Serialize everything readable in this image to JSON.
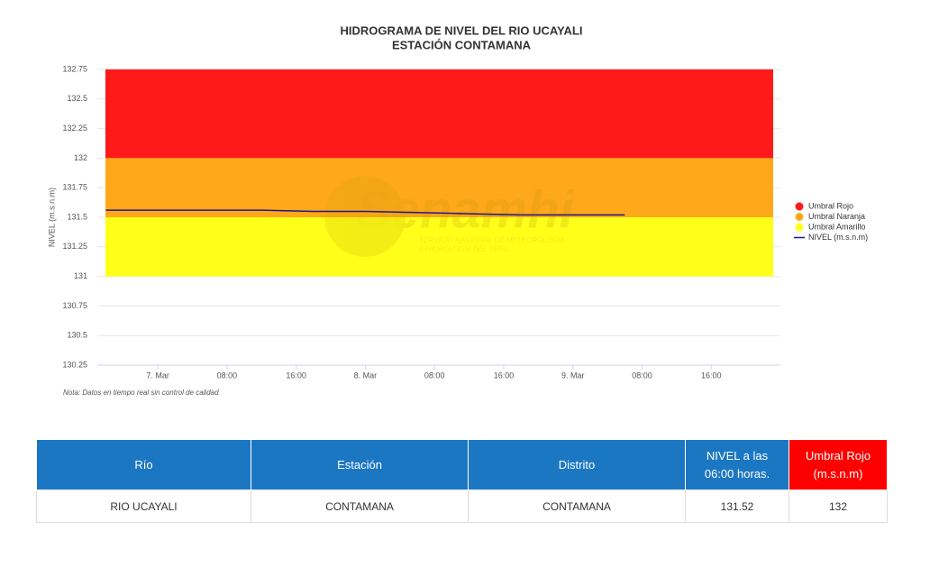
{
  "chart_data": {
    "type": "line",
    "title": "HIDROGRAMA DE NIVEL DEL RIO UCAYALI",
    "subtitle": "ESTACIÓN CONTAMANA",
    "y_label": "NIVEL (m.s.n.m)",
    "note": "Nota: Datos en tiempo real sin control de calidad",
    "watermark": {
      "title": "Senamhi",
      "lines": [
        "SERVICIO NACIONAL DE METEOROLOGIA",
        "E HIDROLOGIA DEL PERU"
      ]
    },
    "bands": [
      {
        "name": "Umbral Rojo",
        "color": "#ff1a1a",
        "from": 132,
        "to": 132.75
      },
      {
        "name": "Umbral Naranja",
        "color": "#ffa91a",
        "from": 131.5,
        "to": 132
      },
      {
        "name": "Umbral Amarillo",
        "color": "#ffff1a",
        "from": 131,
        "to": 131.5
      }
    ],
    "x": [
      -6,
      0,
      6,
      12,
      18,
      24,
      30,
      36,
      42,
      48,
      54
    ],
    "series": [
      {
        "name": "NIVEL (m.s.n.m)",
        "color": "#1a1a8c",
        "values": [
          131.56,
          131.56,
          131.56,
          131.56,
          131.55,
          131.55,
          131.54,
          131.53,
          131.52,
          131.52,
          131.52
        ]
      }
    ],
    "xlim": [
      -7,
      72
    ],
    "xticks": [
      {
        "value": 0,
        "label": "7. Mar"
      },
      {
        "value": 8,
        "label": "08:00"
      },
      {
        "value": 16,
        "label": "16:00"
      },
      {
        "value": 24,
        "label": "8. Mar"
      },
      {
        "value": 32,
        "label": "08:00"
      },
      {
        "value": 40,
        "label": "16:00"
      },
      {
        "value": 48,
        "label": "9. Mar"
      },
      {
        "value": 56,
        "label": "08:00"
      },
      {
        "value": 64,
        "label": "16:00"
      }
    ],
    "ylim": [
      130.25,
      132.75
    ],
    "yticks": [
      130.25,
      130.5,
      130.75,
      131,
      131.25,
      131.5,
      131.75,
      132,
      132.25,
      132.5,
      132.75
    ],
    "grid": true
  },
  "table": {
    "header": [
      "Río",
      "Estación",
      "Distrito",
      "NIVEL a las 06:00 horas.",
      "Umbral Rojo (m.s.n.m)"
    ],
    "rows": [
      [
        "RIO UCAYALI",
        "CONTAMANA",
        "CONTAMANA",
        131.52,
        132
      ]
    ]
  }
}
